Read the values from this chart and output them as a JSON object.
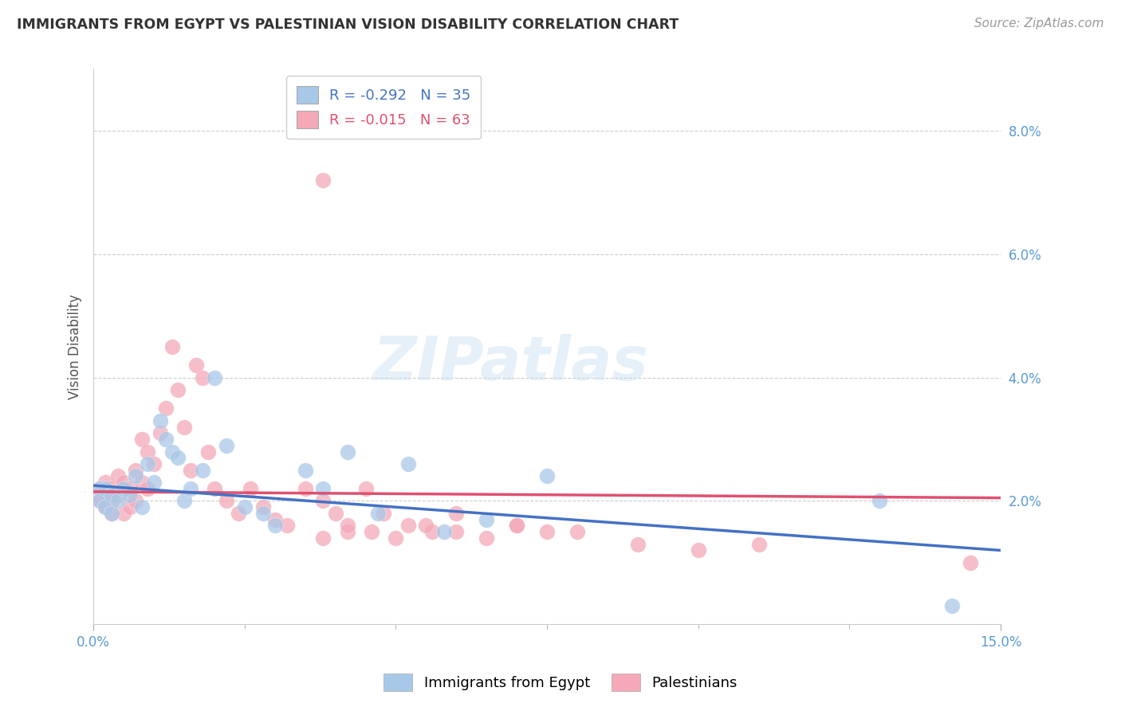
{
  "title": "IMMIGRANTS FROM EGYPT VS PALESTINIAN VISION DISABILITY CORRELATION CHART",
  "source": "Source: ZipAtlas.com",
  "ylabel": "Vision Disability",
  "xlim": [
    0.0,
    0.15
  ],
  "ylim": [
    0.0,
    0.09
  ],
  "egypt_R": -0.292,
  "egypt_N": 35,
  "pal_R": -0.015,
  "pal_N": 63,
  "egypt_color": "#a8c8e8",
  "pal_color": "#f4a8b8",
  "egypt_line_color": "#4472c4",
  "pal_line_color": "#e05070",
  "watermark": "ZIPatlas",
  "egypt_points_x": [
    0.001,
    0.001,
    0.002,
    0.002,
    0.003,
    0.003,
    0.004,
    0.005,
    0.006,
    0.007,
    0.008,
    0.009,
    0.01,
    0.011,
    0.012,
    0.013,
    0.014,
    0.015,
    0.016,
    0.018,
    0.02,
    0.022,
    0.025,
    0.028,
    0.03,
    0.035,
    0.038,
    0.042,
    0.047,
    0.052,
    0.058,
    0.065,
    0.075,
    0.13,
    0.142
  ],
  "egypt_points_y": [
    0.022,
    0.02,
    0.019,
    0.022,
    0.021,
    0.018,
    0.02,
    0.022,
    0.021,
    0.024,
    0.019,
    0.026,
    0.023,
    0.033,
    0.03,
    0.028,
    0.027,
    0.02,
    0.022,
    0.025,
    0.04,
    0.029,
    0.019,
    0.018,
    0.016,
    0.025,
    0.022,
    0.028,
    0.018,
    0.026,
    0.015,
    0.017,
    0.024,
    0.02,
    0.003
  ],
  "pal_points_x": [
    0.001,
    0.001,
    0.001,
    0.002,
    0.002,
    0.002,
    0.003,
    0.003,
    0.003,
    0.004,
    0.004,
    0.005,
    0.005,
    0.006,
    0.006,
    0.007,
    0.007,
    0.008,
    0.008,
    0.009,
    0.009,
    0.01,
    0.011,
    0.012,
    0.013,
    0.014,
    0.015,
    0.016,
    0.017,
    0.018,
    0.019,
    0.02,
    0.022,
    0.024,
    0.026,
    0.028,
    0.03,
    0.032,
    0.035,
    0.038,
    0.04,
    0.042,
    0.045,
    0.048,
    0.052,
    0.056,
    0.06,
    0.065,
    0.07,
    0.075,
    0.038,
    0.042,
    0.046,
    0.05,
    0.055,
    0.06,
    0.07,
    0.08,
    0.09,
    0.1,
    0.11,
    0.145,
    0.038
  ],
  "pal_points_y": [
    0.022,
    0.021,
    0.02,
    0.023,
    0.021,
    0.019,
    0.022,
    0.02,
    0.018,
    0.024,
    0.021,
    0.023,
    0.018,
    0.022,
    0.019,
    0.025,
    0.02,
    0.03,
    0.023,
    0.028,
    0.022,
    0.026,
    0.031,
    0.035,
    0.045,
    0.038,
    0.032,
    0.025,
    0.042,
    0.04,
    0.028,
    0.022,
    0.02,
    0.018,
    0.022,
    0.019,
    0.017,
    0.016,
    0.022,
    0.02,
    0.018,
    0.015,
    0.022,
    0.018,
    0.016,
    0.015,
    0.015,
    0.014,
    0.016,
    0.015,
    0.014,
    0.016,
    0.015,
    0.014,
    0.016,
    0.018,
    0.016,
    0.015,
    0.013,
    0.012,
    0.013,
    0.01,
    0.072
  ]
}
